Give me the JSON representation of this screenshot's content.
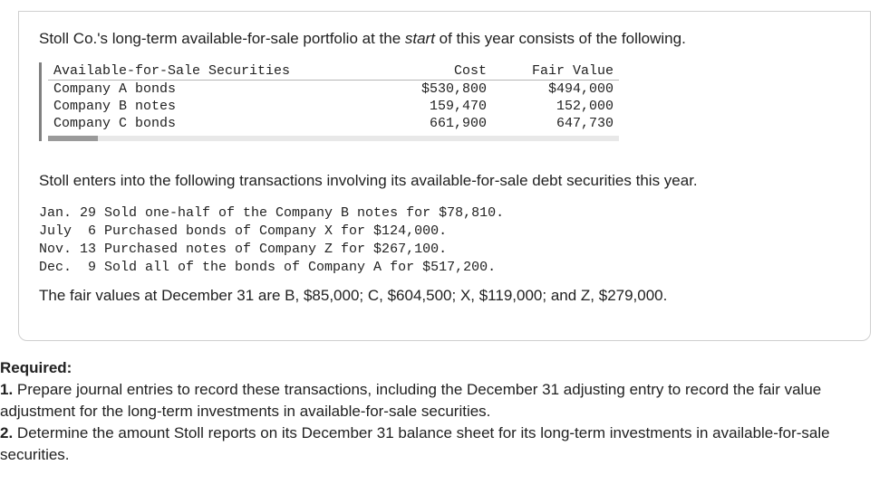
{
  "intro": {
    "prefix": "Stoll Co.'s long-term available-for-sale portfolio at the ",
    "italic": "start",
    "suffix": " of this year consists of the following."
  },
  "afs_table": {
    "headers": {
      "name": "Available-for-Sale Securities",
      "cost": "Cost",
      "fv": "Fair Value"
    },
    "rows": [
      {
        "name": "Company A bonds",
        "cost": "$530,800",
        "fv": "$494,000"
      },
      {
        "name": "Company B notes",
        "cost": "159,470",
        "fv": "152,000"
      },
      {
        "name": "Company C bonds",
        "cost": "661,900",
        "fv": "647,730"
      }
    ]
  },
  "mid_para": "Stoll enters into the following transactions involving its available-for-sale debt securities this year.",
  "tx": [
    "Jan. 29 Sold one-half of the Company B notes for $78,810.",
    "July  6 Purchased bonds of Company X for $124,000.",
    "Nov. 13 Purchased notes of Company Z for $267,100.",
    "Dec.  9 Sold all of the bonds of Company A for $517,200."
  ],
  "fv_line": "The fair values at December 31 are B, $85,000; C, $604,500; X, $119,000; and Z, $279,000.",
  "required": {
    "header": "Required:",
    "items": [
      {
        "n": "1.",
        "t": " Prepare journal entries to record these transactions, including the December 31 adjusting entry to record the fair value adjustment for the long-term investments in available-for-sale securities."
      },
      {
        "n": "2.",
        "t": " Determine the amount Stoll reports on its December 31 balance sheet for its long-term investments in available-for-sale securities."
      }
    ]
  }
}
